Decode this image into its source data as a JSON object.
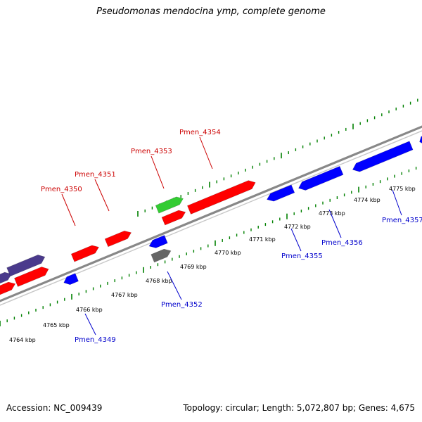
{
  "title": "Pseudomonas mendocina ymp, complete genome",
  "footer": {
    "accession": "Accession: NC_009439",
    "stats": "Topology: circular; Length: 5,072,807 bp; Genes: 4,675"
  },
  "colors": {
    "red_gene": "#ff0000",
    "blue_gene": "#0000ff",
    "green_gene": "#33cc33",
    "purple_gene": "#4a3a8c",
    "gray_gene": "#666666",
    "backbone": "#888888",
    "tick_green": "#008000",
    "label_red": "#cc0000",
    "label_blue": "#0000cc"
  },
  "ruler": {
    "labels": [
      "4764 kbp",
      "4765 kbp",
      "4766 kbp",
      "4767 kbp",
      "4768 kbp",
      "4769 kbp",
      "4770 kbp",
      "4771 kbp",
      "4772 kbp",
      "4773 kbp",
      "4774 kbp",
      "4775 kbp"
    ]
  },
  "gene_labels": {
    "red": [
      "Pmen_4350",
      "Pmen_4351",
      "Pmen_4353",
      "Pmen_4354"
    ],
    "blue": [
      "Pmen_4349",
      "Pmen_4352",
      "Pmen_4355",
      "Pmen_4356",
      "Pmen_4357"
    ]
  }
}
